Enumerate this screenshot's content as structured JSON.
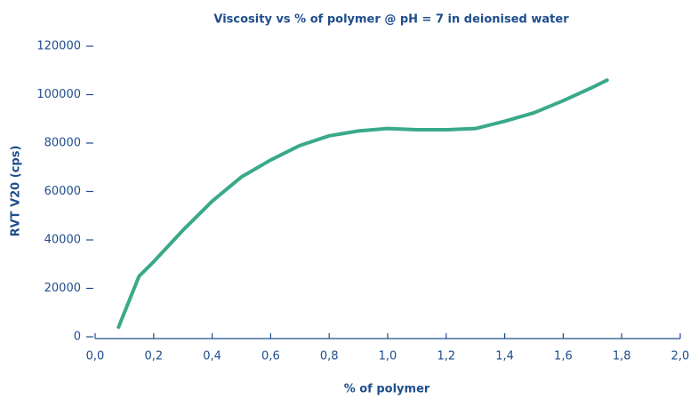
{
  "chart_data": {
    "type": "line",
    "title": "Viscosity vs % of polymer @ pH = 7 in deionised water",
    "xlabel": "% of polymer",
    "ylabel": "RVT V20 (cps)",
    "x": [
      0.08,
      0.15,
      0.2,
      0.3,
      0.4,
      0.5,
      0.6,
      0.7,
      0.8,
      0.9,
      1.0,
      1.1,
      1.2,
      1.3,
      1.4,
      1.5,
      1.6,
      1.7,
      1.75
    ],
    "series": [
      {
        "name": "Viscosity",
        "color": "#3aa98a",
        "values": [
          4000,
          25000,
          31000,
          44000,
          56000,
          66000,
          73000,
          79000,
          83000,
          85000,
          86000,
          85500,
          85500,
          86000,
          89000,
          92500,
          97500,
          103000,
          106000
        ]
      }
    ],
    "xlim": [
      0,
      2
    ],
    "ylim": [
      0,
      120000
    ],
    "xticks": [
      {
        "value": 0,
        "label": "0,0"
      },
      {
        "value": 0.2,
        "label": "0,2"
      },
      {
        "value": 0.4,
        "label": "0,4"
      },
      {
        "value": 0.6,
        "label": "0,6"
      },
      {
        "value": 0.8,
        "label": "0,8"
      },
      {
        "value": 1.0,
        "label": "1,0"
      },
      {
        "value": 1.2,
        "label": "1,2"
      },
      {
        "value": 1.4,
        "label": "1,4"
      },
      {
        "value": 1.6,
        "label": "1,6"
      },
      {
        "value": 1.8,
        "label": "1,8"
      },
      {
        "value": 2.0,
        "label": "2,0"
      }
    ],
    "yticks": [
      0,
      20000,
      40000,
      60000,
      80000,
      100000,
      120000
    ]
  }
}
